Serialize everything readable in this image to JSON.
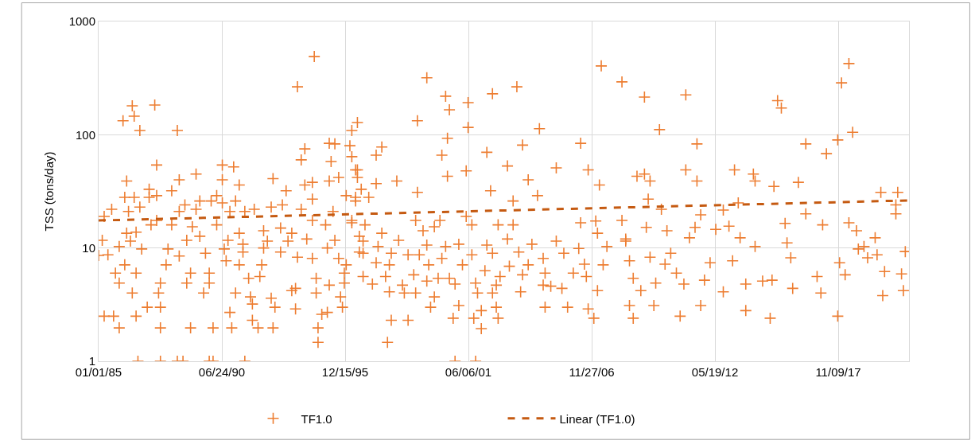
{
  "chart_data": {
    "type": "scatter",
    "ylabel": "TSS (tons/day)",
    "log": "y",
    "grid": true,
    "legend": "bottom",
    "xlim": [
      "1985-01-01",
      "2020-12-31"
    ],
    "xticks": [
      {
        "value": "1985-01-01",
        "label": "01/01/85"
      },
      {
        "value": "1990-06-24",
        "label": "06/24/90"
      },
      {
        "value": "1995-12-15",
        "label": "12/15/95"
      },
      {
        "value": "2001-06-06",
        "label": "06/06/01"
      },
      {
        "value": "2006-11-27",
        "label": "11/27/06"
      },
      {
        "value": "2012-05-19",
        "label": "05/19/12"
      },
      {
        "value": "2017-11-09",
        "label": "11/09/17"
      }
    ],
    "ylim": [
      1,
      1000
    ],
    "yticks": [
      1,
      10,
      100,
      1000
    ],
    "series": [
      {
        "name": "TF1.0",
        "marker": "cross",
        "color": "#ed7d31",
        "x": [
          "1985-01",
          "1985-03",
          "1985-04",
          "1985-04",
          "1985-06",
          "1985-08",
          "1985-09",
          "1985-10",
          "1985-12",
          "1985-12",
          "1985-12",
          "1986-02",
          "1986-03",
          "1986-03",
          "1986-04",
          "1986-04",
          "1986-05",
          "1986-06",
          "1986-07",
          "1986-07",
          "1986-08",
          "1986-08",
          "1986-09",
          "1986-09",
          "1986-09",
          "1986-10",
          "1986-11",
          "1986-11",
          "1986-12",
          "1987-03",
          "1987-04",
          "1987-04",
          "1987-05",
          "1987-07",
          "1987-08",
          "1987-08",
          "1987-08",
          "1987-09",
          "1987-10",
          "1987-10",
          "1987-10",
          "1987-10",
          "1988-01",
          "1988-02",
          "1988-04",
          "1988-04",
          "1988-07",
          "1988-07",
          "1988-08",
          "1988-08",
          "1988-08",
          "1988-10",
          "1988-11",
          "1988-12",
          "1988-12",
          "1989-02",
          "1989-02",
          "1989-03",
          "1989-05",
          "1989-05",
          "1989-07",
          "1989-07",
          "1989-09",
          "1989-10",
          "1989-12",
          "1989-12",
          "1989-12",
          "1990-01",
          "1990-02",
          "1990-02",
          "1990-04",
          "1990-04",
          "1990-07",
          "1990-07",
          "1990-07",
          "1990-08",
          "1990-09",
          "1990-10",
          "1990-11",
          "1990-11",
          "1990-12",
          "1991-01",
          "1991-02",
          "1991-02",
          "1991-04",
          "1991-04",
          "1991-04",
          "1991-06",
          "1991-06",
          "1991-07",
          "1991-07",
          "1991-09",
          "1991-10",
          "1991-11",
          "1991-11",
          "1991-12",
          "1992-02",
          "1992-03",
          "1992-04",
          "1992-05",
          "1992-05",
          "1992-07",
          "1992-09",
          "1992-09",
          "1992-10",
          "1992-10",
          "1992-11",
          "1993-02",
          "1993-02",
          "1993-03",
          "1993-05",
          "1993-06",
          "1993-08",
          "1993-08",
          "1993-10",
          "1993-10",
          "1993-11",
          "1993-11",
          "1994-01",
          "1994-01",
          "1994-03",
          "1994-03",
          "1994-04",
          "1994-07",
          "1994-07",
          "1994-07",
          "1994-07",
          "1994-08",
          "1994-09",
          "1994-09",
          "1994-10",
          "1994-10",
          "1994-12",
          "1995-02",
          "1995-03",
          "1995-03",
          "1995-04",
          "1995-04",
          "1995-04",
          "1995-05",
          "1995-06",
          "1995-07",
          "1995-07",
          "1995-09",
          "1995-09",
          "1995-10",
          "1995-11",
          "1995-12",
          "1995-12",
          "1996-01",
          "1996-01",
          "1996-03",
          "1996-04",
          "1996-04",
          "1996-06",
          "1996-06",
          "1996-07",
          "1996-08",
          "1996-10",
          "1996-10",
          "1996-04",
          "1996-04",
          "1996-06",
          "1996-07",
          "1996-07",
          "1996-08",
          "1996-09",
          "1996-10",
          "1996-11",
          "1997-01",
          "1997-03",
          "1997-05",
          "1997-05",
          "1997-05",
          "1997-06",
          "1997-08",
          "1997-08",
          "1997-10",
          "1997-11",
          "1997-12",
          "1997-12",
          "1998-01",
          "1998-01",
          "1998-04",
          "1998-05",
          "1998-07",
          "1998-08",
          "1998-10",
          "1998-10",
          "1999-01",
          "1999-02",
          "1999-02",
          "1999-03",
          "1999-03",
          "1999-04",
          "1999-06",
          "1999-08",
          "1999-08",
          "1999-08",
          "1999-09",
          "1999-10",
          "1999-12",
          "1999-12",
          "2000-02",
          "2000-03",
          "2000-04",
          "2000-04",
          "2000-06",
          "2000-06",
          "2000-07",
          "2000-07",
          "2000-08",
          "2000-08",
          "2000-10",
          "2000-11",
          "2000-11",
          "2001-01",
          "2001-01",
          "2001-03",
          "2001-05",
          "2001-05",
          "2001-06",
          "2001-06",
          "2001-08",
          "2001-08",
          "2001-09",
          "2001-10",
          "2001-10",
          "2001-11",
          "2002-01",
          "2002-01",
          "2002-03",
          "2002-04",
          "2002-04",
          "2002-06",
          "2002-07",
          "2002-07",
          "2002-07",
          "2002-09",
          "2002-09",
          "2002-10",
          "2002-10",
          "2002-11",
          "2003-03",
          "2003-03",
          "2003-04",
          "2003-06",
          "2003-06",
          "2003-08",
          "2003-09",
          "2003-10",
          "2003-11",
          "2003-11",
          "2004-02",
          "2004-02",
          "2004-04",
          "2004-07",
          "2004-08",
          "2004-10",
          "2004-10",
          "2004-11",
          "2004-11",
          "2005-02",
          "2005-05",
          "2005-05",
          "2005-08",
          "2005-09",
          "2005-11",
          "2006-02",
          "2006-05",
          "2006-06",
          "2006-06",
          "2006-08",
          "2006-09",
          "2006-10",
          "2006-10",
          "2007-01",
          "2007-02",
          "2007-03",
          "2007-03",
          "2007-04",
          "2007-05",
          "2007-06",
          "2007-08",
          "2008-04",
          "2008-04",
          "2008-06",
          "2008-06",
          "2008-08",
          "2008-08",
          "2008-10",
          "2008-10",
          "2008-12",
          "2009-02",
          "2009-04",
          "2009-04",
          "2009-05",
          "2009-06",
          "2009-07",
          "2009-07",
          "2009-09",
          "2009-10",
          "2009-12",
          "2010-01",
          "2010-03",
          "2010-04",
          "2010-06",
          "2010-09",
          "2010-11",
          "2011-01",
          "2011-02",
          "2011-02",
          "2011-04",
          "2011-07",
          "2011-08",
          "2011-08",
          "2011-10",
          "2011-10",
          "2011-12",
          "2012-03",
          "2012-06",
          "2012-10",
          "2012-10",
          "2013-01",
          "2013-03",
          "2013-04",
          "2013-06",
          "2013-07",
          "2013-10",
          "2013-10",
          "2014-02",
          "2014-03",
          "2014-03",
          "2014-07",
          "2014-11",
          "2014-12",
          "2015-01",
          "2015-03",
          "2015-05",
          "2015-07",
          "2015-08",
          "2015-10",
          "2015-11",
          "2016-02",
          "2016-06",
          "2016-06",
          "2016-12",
          "2017-02",
          "2017-03",
          "2017-05",
          "2017-11",
          "2017-11",
          "2017-12",
          "2018-01",
          "2018-03",
          "2018-05",
          "2018-05",
          "2018-07",
          "2018-09",
          "2018-10",
          "2019-01",
          "2019-03",
          "2019-07",
          "2019-08",
          "2019-10",
          "2019-11",
          "2019-12",
          "2020-06",
          "2020-06",
          "2020-07",
          "2020-09",
          "2020-10",
          "2020-11"
        ],
        "values": [
          8.6,
          11.7,
          2.5,
          19,
          8.7,
          22,
          2.5,
          6,
          10.3,
          4.9,
          1.97,
          133,
          7.1,
          28,
          39,
          13.5,
          21,
          11.5,
          180,
          4,
          146,
          28,
          2.5,
          6,
          13.8,
          1,
          23,
          109,
          9.8,
          3,
          28,
          33,
          16,
          183,
          29,
          17.5,
          54,
          4,
          1,
          4.9,
          3,
          1.97,
          7.1,
          9.8,
          16,
          32,
          109,
          1,
          40,
          8.5,
          21,
          1,
          24,
          4.9,
          11.7,
          6,
          1.97,
          15.4,
          45,
          22,
          26,
          12.7,
          4,
          9,
          6,
          4.9,
          1,
          26,
          1.97,
          1,
          16,
          29,
          40,
          54,
          25,
          9.8,
          7.7,
          11.7,
          21,
          2.7,
          1.97,
          52,
          4,
          26,
          13.5,
          36,
          7.1,
          10.8,
          9.2,
          21,
          1,
          5.4,
          3.7,
          3.2,
          2.3,
          22,
          1.97,
          5.6,
          7.1,
          10,
          14.2,
          11.5,
          23,
          3.6,
          41,
          1.97,
          3,
          15,
          9.2,
          24,
          32,
          11.5,
          13.5,
          4.2,
          2.9,
          4.4,
          265,
          8.3,
          60,
          22,
          75,
          36,
          12,
          38,
          27,
          17.5,
          8.1,
          490,
          5.4,
          4,
          1.97,
          1.47,
          2.6,
          16,
          10,
          2.7,
          84,
          4.7,
          39,
          58,
          21,
          83,
          11.7,
          42,
          8.1,
          3.7,
          3,
          6,
          4.9,
          29,
          7.1,
          80,
          64,
          17.5,
          49,
          28,
          42,
          12.7,
          9,
          5.6,
          16.7,
          109,
          26,
          49,
          128,
          9.2,
          33,
          11.5,
          16,
          28,
          4.8,
          7.4,
          66,
          37,
          10.3,
          13.5,
          78,
          5.6,
          1.47,
          7.1,
          4.1,
          2.3,
          9,
          39,
          11.7,
          4.7,
          4,
          8.7,
          2.3,
          5.8,
          17.5,
          4,
          133,
          31,
          8.7,
          14.2,
          10.6,
          318,
          5.1,
          7.1,
          3,
          3.7,
          15.4,
          5.4,
          17.5,
          66,
          8.1,
          10.3,
          219,
          43,
          93,
          166,
          5.4,
          2.4,
          4.8,
          1,
          10.8,
          3.1,
          7.1,
          48,
          19,
          116,
          192,
          8.7,
          16,
          2.4,
          4.9,
          1,
          4,
          2.8,
          1.94,
          6.3,
          10.6,
          70,
          32,
          9,
          230,
          4,
          4.7,
          3,
          2.4,
          16,
          5.6,
          53,
          12,
          6.9,
          26,
          16,
          265,
          9.2,
          4.1,
          81,
          5.8,
          7.1,
          40,
          10.8,
          29,
          113,
          8.1,
          4.7,
          6,
          3,
          4.6,
          51,
          11.5,
          4.4,
          9,
          3,
          6,
          9.9,
          16.7,
          84,
          7.2,
          5.6,
          2.9,
          49,
          2.4,
          17.3,
          4.2,
          13.5,
          36,
          405,
          7.1,
          10.3,
          293,
          17.5,
          12,
          11.5,
          3.1,
          7.7,
          5.4,
          2.4,
          43,
          4.2,
          45,
          215,
          15.2,
          27,
          39,
          8.3,
          3.1,
          4.9,
          111,
          22,
          7.2,
          14.2,
          9,
          6,
          2.5,
          4.8,
          49,
          225,
          12.3,
          15.2,
          83,
          39,
          19.6,
          3.1,
          5.2,
          7.4,
          14.6,
          4.1,
          21.6,
          15.6,
          7.7,
          49,
          25,
          12.3,
          2.8,
          4.8,
          45,
          10.3,
          39,
          5.1,
          2.4,
          5.2,
          35,
          200,
          172,
          16.5,
          11.1,
          8.2,
          4.4,
          38,
          20,
          83,
          5.6,
          4,
          16,
          68,
          90,
          2.5,
          7.4,
          287,
          5.8,
          425,
          16.7,
          105,
          14.2,
          9.8,
          10.3,
          8.2,
          12.3,
          8.7,
          31,
          3.8,
          6.2,
          24,
          20,
          31,
          5.9,
          4.2,
          9.3
        ]
      },
      {
        "name": "Linear (TF1.0)",
        "type": "line",
        "line_style": "dashed",
        "color": "#c55a11",
        "x": [
          "1985-01-01",
          "2020-12-31"
        ],
        "values": [
          17.5,
          26.3
        ]
      }
    ]
  }
}
